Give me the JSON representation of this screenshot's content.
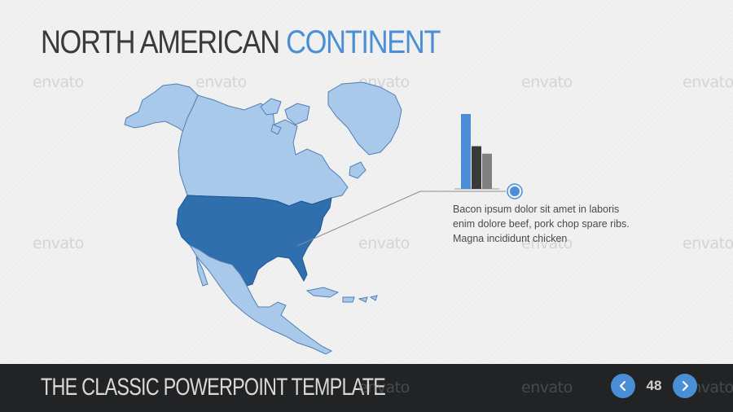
{
  "slide": {
    "title_part1": "NORTH AMERICAN",
    "title_part2": "CONTINENT",
    "description_lines": [
      "Bacon ipsum dolor sit amet in laboris",
      "enim dolore beef, pork chop spare ribs.",
      "Magna incididunt chicken"
    ],
    "watermark_text": "envato"
  },
  "chart_data": {
    "type": "bar",
    "categories": [
      "",
      "",
      ""
    ],
    "values": [
      100,
      57,
      47
    ],
    "colors": [
      "#4a8fd6",
      "#3a3a3a",
      "#808080"
    ],
    "ylim": [
      0,
      100
    ],
    "grid": false,
    "legend": "none"
  },
  "footer": {
    "title": "THE CLASSIC POWERPOINT TEMPLATE",
    "page_number": "48",
    "prev_icon": "chevron-left-icon",
    "next_icon": "chevron-right-icon"
  },
  "colors": {
    "accent": "#4a8fd6",
    "usa": "#2f6fad",
    "land": "#a9c9ea",
    "footer_bg": "#222325"
  }
}
